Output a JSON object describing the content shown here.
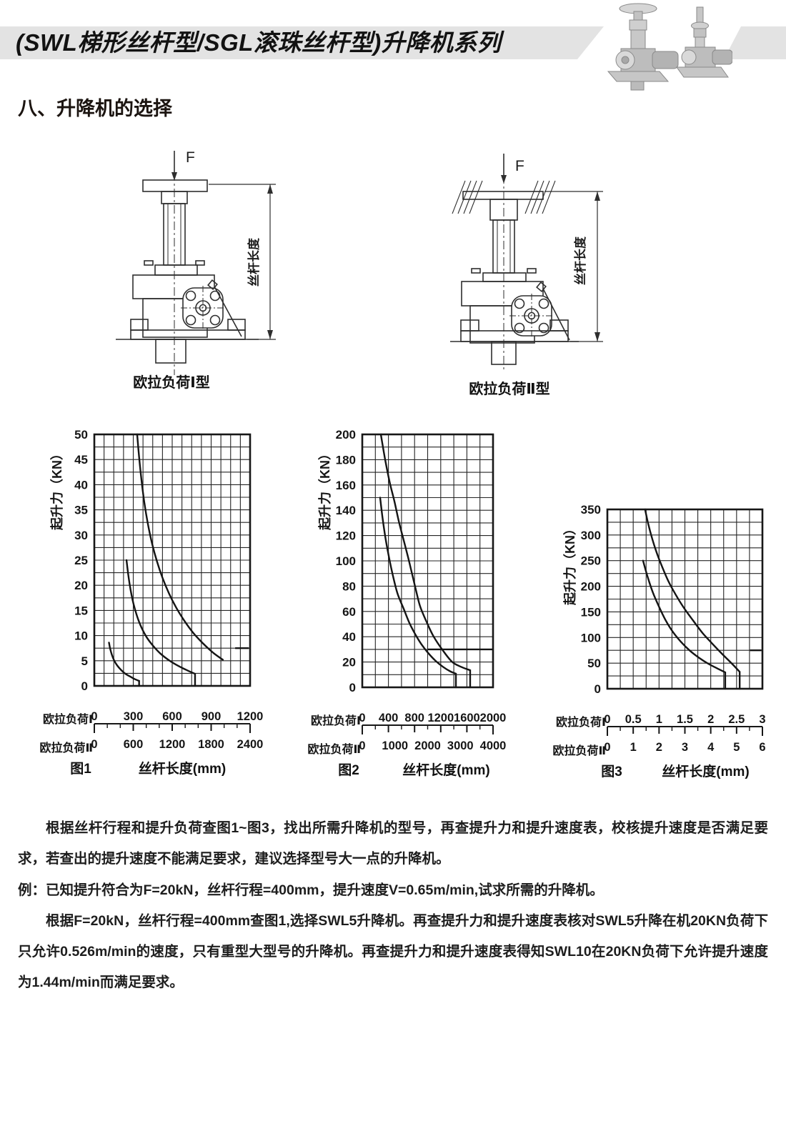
{
  "header": {
    "title": "(SWL梯形丝杆型/SGL滚珠丝杆型)升降机系列",
    "band_color": "#e3e3e3"
  },
  "section_heading": "八、升降机的选择",
  "diagrams": [
    {
      "force_label": "F",
      "dim_label": "丝杆长度",
      "caption": "欧拉负荷Ⅰ型"
    },
    {
      "force_label": "F",
      "dim_label": "丝杆长度",
      "caption": "欧拉负荷Ⅱ型"
    }
  ],
  "notes": [
    {
      "indent": true,
      "text": "根据丝杆行程和提升负荷查图1~图3，找出所需升降机的型号，再查提升力和提升速度表，校核提升速度是否满足要求，若查出的提升速度不能满足要求，建议选择型号大一点的升降机。"
    },
    {
      "indent": false,
      "text": "例：已知提升符合为F=20kN，丝杆行程=400mm，提升速度V=0.65m/min,试求所需的升降机。"
    },
    {
      "indent": true,
      "text": "根据F=20kN，丝杆行程=400mm查图1,选择SWL5升降机。再查提升力和提升速度表核对SWL5升降在机20KN负荷下只允许0.526m/min的速度，只有重型大型号的升降机。再查提升力和提升速度表得知SWL10在20KN负荷下允许提升速度为1.44m/min而满足要求。"
    }
  ],
  "chart_data": [
    {
      "type": "line",
      "fig_label": "图1",
      "xlabel": "丝杆长度(mm)",
      "ylabel": "起升力（KN）",
      "x_max": 1200,
      "y_max": 50,
      "y_ticks": [
        0,
        5,
        10,
        15,
        20,
        25,
        30,
        35,
        40,
        45,
        50
      ],
      "grid_cols": 16,
      "grid_rows": 20,
      "minor_divisions": 12,
      "x_axis_rows": [
        {
          "label": "欧拉负荷Ⅰ",
          "ticks": [
            0,
            300,
            600,
            900,
            1200
          ]
        },
        {
          "label": "欧拉负荷Ⅱ",
          "ticks": [
            0,
            600,
            1200,
            1800,
            2400
          ]
        }
      ],
      "series": [
        {
          "name": "curve-1",
          "drop_to_zero": true,
          "points": [
            [
              113,
              8.6
            ],
            [
              122,
              7.4
            ],
            [
              135,
              6.2
            ],
            [
              152,
              5.1
            ],
            [
              175,
              4.1
            ],
            [
              205,
              3.2
            ],
            [
              240,
              2.4
            ],
            [
              280,
              1.8
            ],
            [
              315,
              1.3
            ],
            [
              345,
              1.0
            ]
          ]
        },
        {
          "name": "curve-2",
          "drop_to_zero": true,
          "points": [
            [
              248,
              25
            ],
            [
              262,
              22
            ],
            [
              280,
              19
            ],
            [
              302,
              16.3
            ],
            [
              330,
              13.8
            ],
            [
              365,
              11.5
            ],
            [
              405,
              9.6
            ],
            [
              455,
              7.9
            ],
            [
              510,
              6.4
            ],
            [
              575,
              5.1
            ],
            [
              645,
              4.0
            ],
            [
              715,
              3.1
            ],
            [
              776,
              2.4
            ]
          ]
        },
        {
          "name": "curve-3",
          "drop_to_zero": false,
          "points": [
            [
              330,
              50
            ],
            [
              345,
              45.5
            ],
            [
              363,
              41
            ],
            [
              385,
              36.5
            ],
            [
              412,
              32.3
            ],
            [
              444,
              28.4
            ],
            [
              482,
              24.8
            ],
            [
              525,
              21.5
            ],
            [
              575,
              18.4
            ],
            [
              630,
              15.6
            ],
            [
              692,
              13.0
            ],
            [
              760,
              10.6
            ],
            [
              835,
              8.5
            ],
            [
              915,
              6.6
            ],
            [
              990,
              5.2
            ]
          ]
        }
      ],
      "segments": [
        {
          "points": [
            [
              1085,
              7.5
            ],
            [
              1190,
              7.5
            ]
          ]
        }
      ]
    },
    {
      "type": "line",
      "fig_label": "图2",
      "xlabel": "丝杆长度(mm)",
      "ylabel": "起升力（KN）",
      "x_max": 2000,
      "y_max": 200,
      "y_ticks": [
        0,
        20,
        40,
        60,
        80,
        100,
        120,
        140,
        160,
        180,
        200
      ],
      "grid_cols": 10,
      "grid_rows": 20,
      "minor_divisions": 10,
      "x_axis_rows": [
        {
          "label": "欧拉负荷Ⅰ",
          "ticks": [
            0,
            400,
            800,
            1200,
            1600,
            2000
          ]
        },
        {
          "label": "欧拉负荷Ⅱ",
          "ticks": [
            0,
            1000,
            2000,
            3000,
            4000
          ]
        }
      ],
      "series": [
        {
          "name": "curve-1",
          "drop_to_zero": true,
          "points": [
            [
              273,
              150
            ],
            [
              310,
              134
            ],
            [
              355,
              118
            ],
            [
              408,
              103
            ],
            [
              470,
              88
            ],
            [
              540,
              74
            ],
            [
              634,
              62
            ],
            [
              720,
              51
            ],
            [
              810,
              42
            ],
            [
              905,
              34
            ],
            [
              1010,
              27
            ],
            [
              1120,
              21
            ],
            [
              1240,
              16
            ],
            [
              1350,
              12.5
            ],
            [
              1432,
              10.8
            ]
          ]
        },
        {
          "name": "curve-2",
          "drop_to_zero": true,
          "points": [
            [
              284,
              200
            ],
            [
              350,
              180
            ],
            [
              420,
              162
            ],
            [
              492,
              147
            ],
            [
              560,
              131
            ],
            [
              630,
              117
            ],
            [
              700,
              103
            ],
            [
              765,
              89
            ],
            [
              825,
              76
            ],
            [
              885,
              64
            ],
            [
              990,
              51
            ],
            [
              1093,
              40
            ],
            [
              1235,
              29
            ],
            [
              1377,
              20
            ],
            [
              1520,
              16
            ],
            [
              1650,
              13.5
            ]
          ]
        }
      ],
      "segments": [
        {
          "points": [
            [
              1005,
              30
            ],
            [
              1995,
              30
            ]
          ]
        }
      ]
    },
    {
      "type": "line",
      "fig_label": "图3",
      "xlabel": "丝杆长度(mm)",
      "ylabel": "起升力（KN）",
      "x_max": 3,
      "y_max": 350,
      "y_ticks": [
        0,
        50,
        100,
        150,
        200,
        250,
        300,
        350
      ],
      "grid_cols": 12,
      "grid_rows": 14,
      "minor_divisions": 12,
      "x_axis_rows": [
        {
          "label": "欧拉负荷Ⅰ",
          "ticks": [
            0,
            0.5,
            1,
            1.5,
            2,
            2.5,
            3
          ]
        },
        {
          "label": "欧拉负荷Ⅱ",
          "ticks": [
            0,
            1,
            2,
            3,
            4,
            5,
            6
          ]
        }
      ],
      "series": [
        {
          "name": "curve-1",
          "drop_to_zero": true,
          "points": [
            [
              0.69,
              250
            ],
            [
              0.78,
              218
            ],
            [
              0.88,
              188
            ],
            [
              1.0,
              160
            ],
            [
              1.12,
              135
            ],
            [
              1.26,
              112
            ],
            [
              1.42,
              92
            ],
            [
              1.6,
              74
            ],
            [
              1.78,
              60
            ],
            [
              1.95,
              49
            ],
            [
              2.12,
              40
            ],
            [
              2.28,
              32
            ]
          ]
        },
        {
          "name": "curve-2",
          "drop_to_zero": true,
          "points": [
            [
              0.73,
              350
            ],
            [
              0.79,
              322
            ],
            [
              0.87,
              292
            ],
            [
              0.96,
              264
            ],
            [
              1.06,
              238
            ],
            [
              1.18,
              210
            ],
            [
              1.32,
              184
            ],
            [
              1.48,
              158
            ],
            [
              1.66,
              133
            ],
            [
              1.84,
              109
            ],
            [
              2.03,
              88
            ],
            [
              2.22,
              68
            ],
            [
              2.4,
              50
            ],
            [
              2.56,
              33
            ]
          ]
        }
      ],
      "segments": [
        {
          "points": [
            [
              2.76,
              75
            ],
            [
              2.98,
              75
            ]
          ]
        }
      ]
    }
  ]
}
